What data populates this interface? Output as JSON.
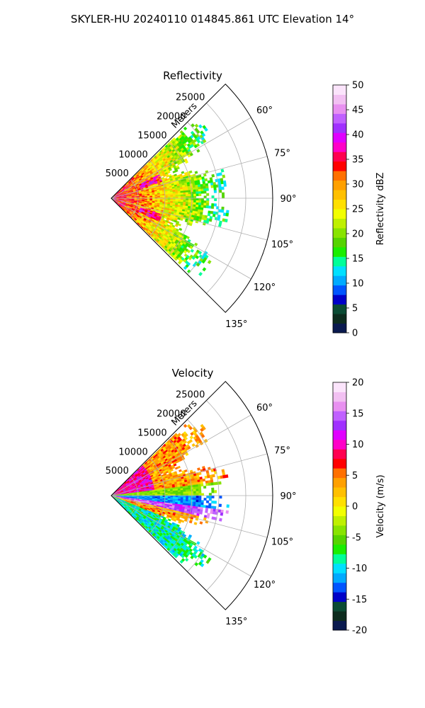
{
  "title": "SKYLER-HU  20240110  014845.861 UTC Elevation 14°",
  "colors": {
    "grid": "#b0b0b0",
    "axis": "#000000",
    "background": "#ffffff"
  },
  "chart_data": [
    {
      "type": "polar-sector-heatmap",
      "title": "Reflectivity",
      "radial_label": "Meters",
      "radial_ticks": [
        "5000",
        "10000",
        "15000",
        "20000",
        "25000"
      ],
      "r_max": 30000,
      "theta_ticks": [
        "60°",
        "75°",
        "90°",
        "105°",
        "120°",
        "135°"
      ],
      "theta_range_deg": [
        45,
        135
      ],
      "data_extent_m": 22000,
      "colorbar": {
        "label": "Reflectivity dBZ",
        "min": 0,
        "max": 50,
        "ticks": [
          "0",
          "5",
          "10",
          "15",
          "20",
          "25",
          "30",
          "35",
          "40",
          "45",
          "50"
        ],
        "palette": [
          "#0a1a4f",
          "#0d2c1e",
          "#0b4b34",
          "#0000c8",
          "#0055ff",
          "#00aaff",
          "#00e0ff",
          "#00ff99",
          "#1aee00",
          "#55d400",
          "#88e400",
          "#bff000",
          "#f2ff00",
          "#ffe000",
          "#ffc000",
          "#ffa000",
          "#ff7000",
          "#ff0000",
          "#ff0050",
          "#ff00c8",
          "#e000ff",
          "#a030ff",
          "#c060ff",
          "#e890f0",
          "#f2c0f2",
          "#fbe4fb"
        ]
      }
    },
    {
      "type": "polar-sector-heatmap",
      "title": "Velocity",
      "radial_label": "Meters",
      "radial_ticks": [
        "5000",
        "10000",
        "15000",
        "20000",
        "25000"
      ],
      "r_max": 30000,
      "theta_ticks": [
        "60°",
        "75°",
        "90°",
        "105°",
        "120°",
        "135°"
      ],
      "theta_range_deg": [
        45,
        135
      ],
      "data_extent_m": 22000,
      "colorbar": {
        "label": "Velocity (m/s)",
        "min": -20,
        "max": 20,
        "ticks": [
          "-20",
          "-15",
          "-10",
          "-5",
          "0",
          "5",
          "10",
          "15",
          "20"
        ],
        "palette": [
          "#0a1a4f",
          "#0d2c1e",
          "#0b4b34",
          "#0000c8",
          "#0055ff",
          "#00aaff",
          "#00e0ff",
          "#00ff99",
          "#1aee00",
          "#55d400",
          "#88e400",
          "#bff000",
          "#f2ff00",
          "#ffe000",
          "#ffc000",
          "#ffa000",
          "#ff7000",
          "#ff0000",
          "#ff0050",
          "#ff00c8",
          "#e000ff",
          "#a030ff",
          "#c060ff",
          "#e890f0",
          "#f2c0f2",
          "#fbe4fb"
        ]
      }
    }
  ]
}
